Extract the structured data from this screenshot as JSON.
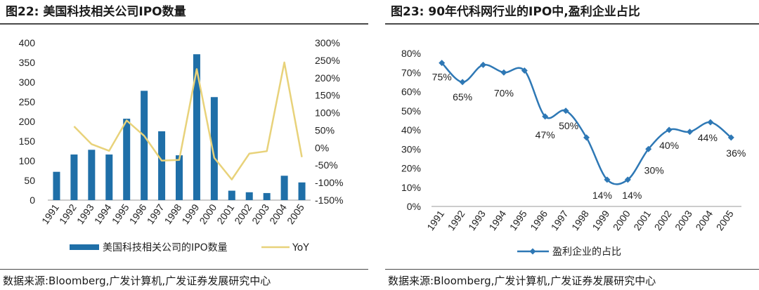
{
  "left": {
    "title": "图22:  美国科技相关公司IPO数量",
    "source": "数据来源:Bloomberg,广发计算机,广发证券发展研究中心",
    "colors": {
      "bar": "#1f6fa8",
      "line": "#e8d27a"
    },
    "chart_data": {
      "type": "bar",
      "categories": [
        "1991",
        "1992",
        "1993",
        "1994",
        "1995",
        "1996",
        "1997",
        "1998",
        "1999",
        "2000",
        "2001",
        "2002",
        "2003",
        "2004",
        "2005"
      ],
      "series": [
        {
          "name": "美国科技相关公司的IPO数量",
          "type": "bar",
          "axis": "left",
          "values": [
            72,
            116,
            128,
            116,
            207,
            278,
            175,
            114,
            371,
            262,
            24,
            20,
            18,
            62,
            45
          ]
        },
        {
          "name": "YoY",
          "type": "line",
          "axis": "right",
          "values": [
            null,
            61,
            10,
            -9,
            78,
            34,
            -37,
            -35,
            225,
            -29,
            -91,
            -17,
            -10,
            244,
            -27
          ]
        }
      ],
      "ylim_left": [
        0,
        400
      ],
      "yticks_left": [
        "0",
        "50",
        "100",
        "150",
        "200",
        "250",
        "300",
        "350",
        "400"
      ],
      "ylim_right": [
        -150,
        300
      ],
      "yticks_right": [
        "-150%",
        "-100%",
        "-50%",
        "0%",
        "50%",
        "100%",
        "150%",
        "200%",
        "250%",
        "300%"
      ],
      "legend": "bottom"
    }
  },
  "right": {
    "title": "图23:  90年代科网行业的IPO中,盈利企业占比",
    "source": "数据来源:Bloomberg,广发计算机,广发证券发展研究中心",
    "colors": {
      "line": "#2e78b5"
    },
    "chart_data": {
      "type": "line",
      "categories": [
        "1991",
        "1992",
        "1993",
        "1994",
        "1995",
        "1996",
        "1997",
        "1998",
        "1999",
        "2000",
        "2001",
        "2002",
        "2003",
        "2004",
        "2005"
      ],
      "series": [
        {
          "name": "盈利企业的占比",
          "values": [
            75,
            65,
            74,
            70,
            71,
            47,
            50,
            36,
            14,
            14,
            30,
            40,
            39,
            44,
            36
          ]
        }
      ],
      "data_labels": [
        {
          "index": 0,
          "text": "75%"
        },
        {
          "index": 1,
          "text": "65%"
        },
        {
          "index": 3,
          "text": "70%"
        },
        {
          "index": 5,
          "text": "47%"
        },
        {
          "index": 6,
          "text": "50%"
        },
        {
          "index": 8,
          "text": "14%"
        },
        {
          "index": 9,
          "text": "14%"
        },
        {
          "index": 10,
          "text": "30%"
        },
        {
          "index": 11,
          "text": "40%"
        },
        {
          "index": 13,
          "text": "44%"
        },
        {
          "index": 14,
          "text": "36%"
        }
      ],
      "ylim": [
        0,
        80
      ],
      "yticks": [
        "0%",
        "10%",
        "20%",
        "30%",
        "40%",
        "50%",
        "60%",
        "70%",
        "80%"
      ],
      "legend": "bottom"
    }
  }
}
